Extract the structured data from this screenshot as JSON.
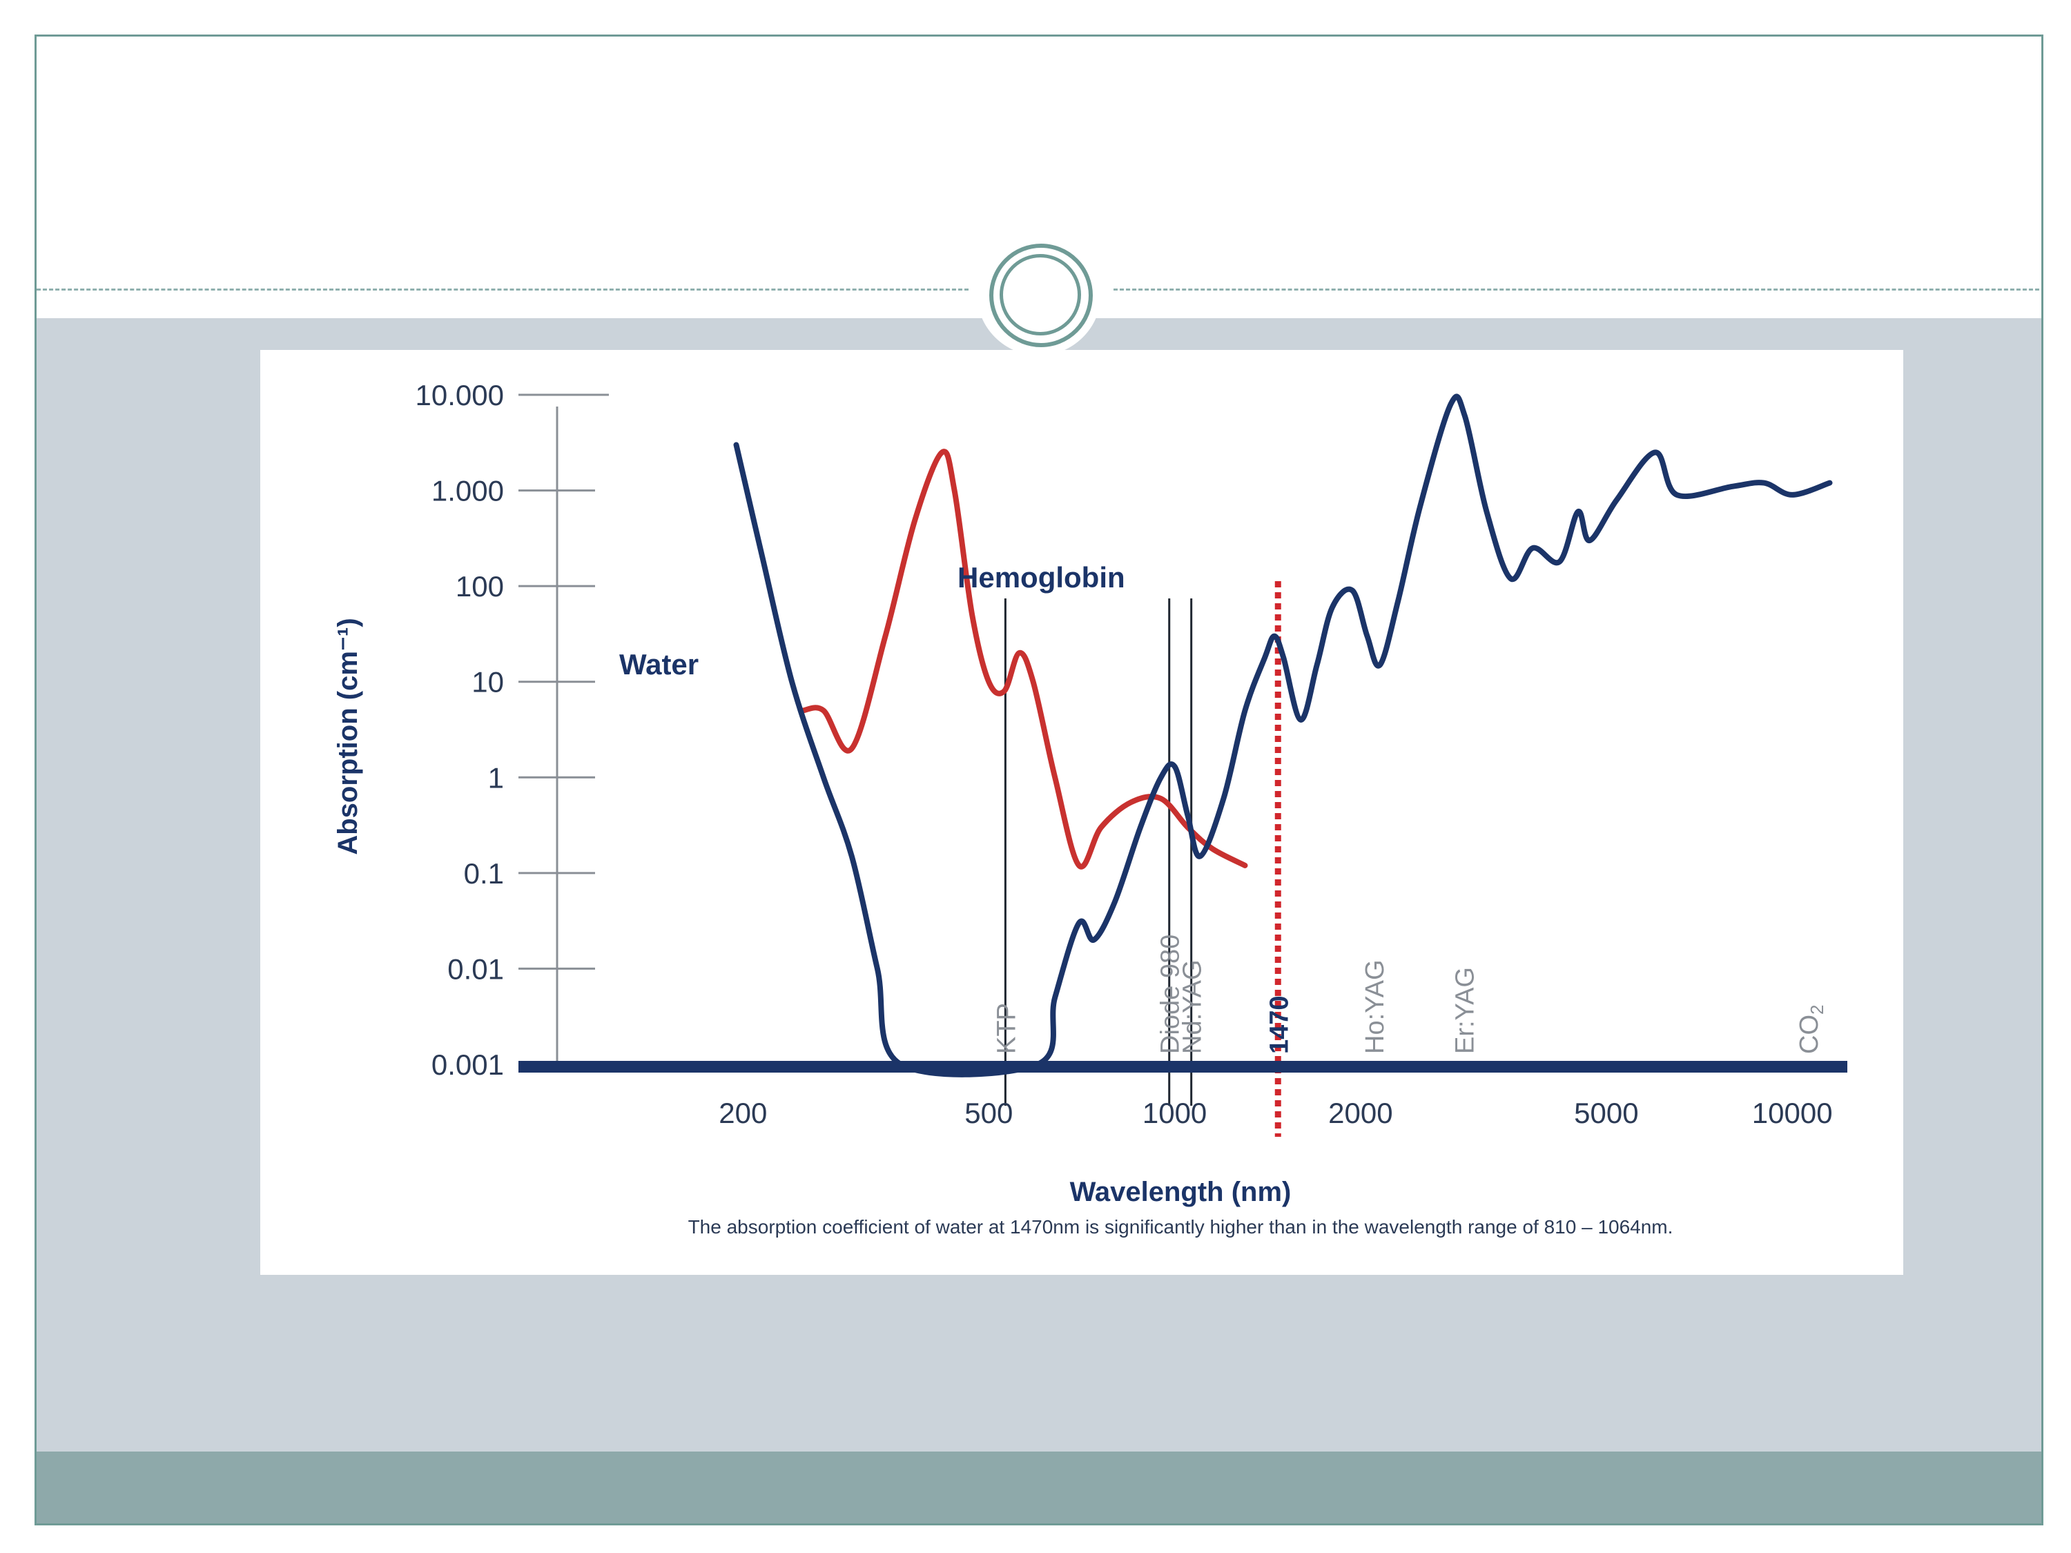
{
  "chart_data": {
    "type": "line",
    "x_scale": "log",
    "y_scale": "log",
    "ylabel": "Absorption (cm⁻¹)",
    "xlabel": "Wavelength (nm)",
    "caption": "The absorption coefficient of water at 1470nm is significantly higher than in the wavelength range of 810 – 1064nm.",
    "xlim": [
      100,
      12000
    ],
    "ylim": [
      0.001,
      10000
    ],
    "y_ticks": [
      {
        "value": 10000,
        "label": "10.000"
      },
      {
        "value": 1000,
        "label": "1.000"
      },
      {
        "value": 100,
        "label": "100"
      },
      {
        "value": 10,
        "label": "10"
      },
      {
        "value": 1,
        "label": "1"
      },
      {
        "value": 0.1,
        "label": "0.1"
      },
      {
        "value": 0.01,
        "label": "0.01"
      },
      {
        "value": 0.001,
        "label": "0.001"
      }
    ],
    "x_ticks": [
      {
        "value": 200,
        "label": "200"
      },
      {
        "value": 500,
        "label": "500"
      },
      {
        "value": 1000,
        "label": "1000"
      },
      {
        "value": 2000,
        "label": "2000"
      },
      {
        "value": 5000,
        "label": "5000"
      },
      {
        "value": 10000,
        "label": "10000"
      }
    ],
    "series": [
      {
        "name": "Water",
        "color": "#1b3468",
        "points": [
          [
            195,
            3000
          ],
          [
            215,
            200
          ],
          [
            240,
            10
          ],
          [
            270,
            1
          ],
          [
            300,
            0.15
          ],
          [
            330,
            0.01
          ],
          [
            360,
            0.001
          ],
          [
            600,
            0.001
          ],
          [
            640,
            0.005
          ],
          [
            700,
            0.03
          ],
          [
            740,
            0.02
          ],
          [
            800,
            0.05
          ],
          [
            880,
            0.3
          ],
          [
            950,
            1.0
          ],
          [
            1000,
            1.3
          ],
          [
            1050,
            0.4
          ],
          [
            1100,
            0.15
          ],
          [
            1200,
            0.6
          ],
          [
            1300,
            5
          ],
          [
            1400,
            18
          ],
          [
            1450,
            30
          ],
          [
            1500,
            18
          ],
          [
            1600,
            4
          ],
          [
            1700,
            15
          ],
          [
            1800,
            60
          ],
          [
            1940,
            90
          ],
          [
            2050,
            30
          ],
          [
            2150,
            15
          ],
          [
            2300,
            70
          ],
          [
            2500,
            700
          ],
          [
            2800,
            8000
          ],
          [
            2950,
            6000
          ],
          [
            3200,
            600
          ],
          [
            3500,
            120
          ],
          [
            3800,
            250
          ],
          [
            4200,
            180
          ],
          [
            4500,
            600
          ],
          [
            4700,
            300
          ],
          [
            5200,
            800
          ],
          [
            6000,
            2500
          ],
          [
            6500,
            900
          ],
          [
            8000,
            1100
          ],
          [
            9000,
            1200
          ],
          [
            10000,
            900
          ],
          [
            11500,
            1200
          ]
        ]
      },
      {
        "name": "Hemoglobin",
        "color": "#c8312f",
        "points": [
          [
            250,
            5
          ],
          [
            270,
            5
          ],
          [
            300,
            2
          ],
          [
            340,
            30
          ],
          [
            380,
            500
          ],
          [
            420,
            2500
          ],
          [
            440,
            1000
          ],
          [
            470,
            50
          ],
          [
            500,
            10
          ],
          [
            530,
            8
          ],
          [
            560,
            20
          ],
          [
            590,
            10
          ],
          [
            640,
            1
          ],
          [
            700,
            0.12
          ],
          [
            760,
            0.3
          ],
          [
            850,
            0.55
          ],
          [
            950,
            0.6
          ],
          [
            1050,
            0.3
          ],
          [
            1150,
            0.18
          ],
          [
            1300,
            0.12
          ]
        ]
      }
    ],
    "laser_lines": [
      {
        "label": "KTP",
        "wavelength": 532
      },
      {
        "label": "Diode 980",
        "wavelength": 980
      },
      {
        "label": "Nd:YAG",
        "wavelength": 1064
      },
      {
        "label": "1470",
        "wavelength": 1470,
        "highlight": true,
        "color": "#d1262c"
      },
      {
        "label": "Ho:YAG",
        "wavelength": 2100
      },
      {
        "label": "Er:YAG",
        "wavelength": 2940
      },
      {
        "label": "CO2",
        "wavelength": 10600
      }
    ],
    "series_labels": {
      "water": "Water",
      "hemoglobin": "Hemoglobin"
    }
  }
}
